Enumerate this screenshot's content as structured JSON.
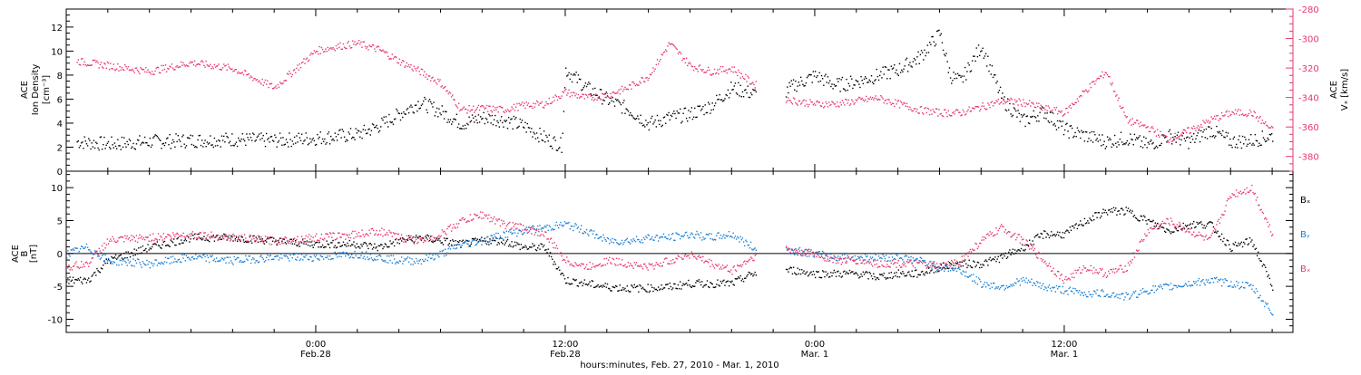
{
  "colors": {
    "black": "#000000",
    "pink": "#e8376a",
    "blue": "#1a7fd6"
  },
  "time_axis": {
    "start_hours": -12,
    "end_hours": 47,
    "ticks": [
      {
        "hours": 0,
        "label": "0:00",
        "sublabel": "Feb.28"
      },
      {
        "hours": 12,
        "label": "12:00",
        "sublabel": "Feb.28"
      },
      {
        "hours": 24,
        "label": "0:00",
        "sublabel": "Mar. 1"
      },
      {
        "hours": 36,
        "label": "12:00",
        "sublabel": "Mar. 1"
      }
    ],
    "title": "hours:minutes, Feb. 27, 2010 - Mar.  1, 2010"
  },
  "chart_data": [
    {
      "type": "scatter",
      "panel": "ion-density-and-vx",
      "ylabel_left": [
        "ACE",
        "Ion Density",
        "[cm⁻³]"
      ],
      "ylabel_right": [
        "ACE",
        "Vₓ [km/s]"
      ],
      "ylim_left": [
        0,
        13.5
      ],
      "yticks_left": [
        0,
        2,
        4,
        6,
        8,
        10,
        12
      ],
      "ylim_right": [
        -390,
        -280
      ],
      "yticks_right": [
        -280,
        -300,
        -320,
        -340,
        -360,
        -380
      ],
      "series": [
        {
          "key": "density",
          "axis": "left",
          "color": "#000000",
          "x": [
            -11.5,
            -10,
            -8,
            -6,
            -4,
            -2,
            0,
            2,
            3,
            4,
            5,
            6,
            7,
            8,
            9,
            10,
            11,
            11.8,
            12,
            13,
            14,
            15,
            16,
            17,
            18,
            19,
            20,
            21,
            22,
            23,
            24,
            25,
            26,
            27,
            28,
            29,
            30,
            30.5,
            31,
            32,
            33,
            34,
            35,
            36,
            37,
            38,
            39,
            40,
            41,
            42,
            43,
            44,
            45,
            46
          ],
          "y": [
            2.5,
            2.3,
            2.5,
            2.6,
            2.7,
            2.6,
            2.8,
            3.1,
            3.8,
            4.8,
            5.8,
            5.0,
            4.0,
            4.5,
            4.3,
            3.8,
            2.8,
            2.2,
            8.5,
            7.0,
            6.0,
            5.2,
            4.0,
            4.5,
            4.8,
            5.5,
            7.0,
            6.5,
            6.0,
            7.2,
            8.0,
            7.2,
            7.5,
            8.0,
            8.5,
            9.5,
            11.5,
            8.0,
            7.5,
            10.5,
            6.0,
            4.2,
            5.0,
            3.5,
            3.0,
            2.5,
            2.8,
            2.2,
            3.0,
            2.5,
            3.5,
            2.5,
            2.6,
            3.0
          ]
        },
        {
          "key": "vx",
          "axis": "right",
          "color": "#e8376a",
          "x": [
            -11.5,
            -10,
            -8,
            -6,
            -4,
            -2,
            0,
            1,
            2,
            3,
            4,
            5,
            6,
            7,
            8,
            9,
            10,
            11,
            12,
            13,
            14,
            15,
            16,
            17,
            18,
            19,
            20,
            21,
            22,
            23,
            24,
            25,
            26,
            27,
            28,
            29,
            30,
            31,
            32,
            33,
            34,
            35,
            36,
            37,
            38,
            39,
            40,
            41,
            42,
            43,
            44,
            45,
            46
          ],
          "y": [
            -315,
            -318,
            -322,
            -316,
            -320,
            -333,
            -308,
            -305,
            -303,
            -307,
            -315,
            -322,
            -330,
            -348,
            -347,
            -348,
            -345,
            -344,
            -336,
            -340,
            -338,
            -333,
            -325,
            -303,
            -318,
            -322,
            -320,
            -330,
            -338,
            -342,
            -344,
            -344,
            -342,
            -340,
            -344,
            -348,
            -350,
            -350,
            -346,
            -342,
            -343,
            -347,
            -350,
            -335,
            -322,
            -355,
            -360,
            -368,
            -362,
            -355,
            -350,
            -350,
            -362
          ]
        }
      ]
    },
    {
      "type": "scatter",
      "panel": "magnetic-field",
      "ylabel_left": [
        "ACE",
        "B",
        "[nT]"
      ],
      "ylim": [
        -12,
        12.5
      ],
      "yticks": [
        -10,
        -5,
        0,
        5,
        10
      ],
      "legend": [
        {
          "label": "Bₓ",
          "color": "#000000"
        },
        {
          "label": "Bᵧ",
          "color": "#1a7fd6"
        },
        {
          "label": "Bₓ",
          "color": "#e8376a",
          "note": "Bz"
        }
      ],
      "series": [
        {
          "key": "bx",
          "color": "#000000",
          "x": [
            -12,
            -11,
            -10,
            -8,
            -6,
            -4,
            -2,
            0,
            2,
            3,
            4,
            5,
            6,
            7,
            8,
            9,
            10,
            11,
            12,
            13,
            14,
            15,
            16,
            17,
            18,
            19,
            20,
            21,
            22,
            23,
            24,
            25,
            26,
            27,
            28,
            29,
            30,
            31,
            32,
            33,
            34,
            35,
            36,
            37,
            38,
            39,
            40,
            41,
            42,
            43,
            44,
            45,
            46
          ],
          "y": [
            -4,
            -4,
            -1,
            1,
            2.5,
            2.5,
            2,
            1.5,
            1.5,
            1,
            2,
            2.5,
            2,
            1.5,
            2,
            2,
            1,
            1,
            -4,
            -4.5,
            -5,
            -5.2,
            -5.2,
            -5,
            -4.5,
            -4.5,
            -4.5,
            -3,
            -2.5,
            -2.5,
            -3,
            -3,
            -3,
            -3.5,
            -3,
            -3,
            -2,
            -1.5,
            -1.5,
            -0.5,
            1,
            3,
            3,
            5,
            6.5,
            6.5,
            5,
            3.5,
            4.5,
            4.5,
            1,
            2,
            -5
          ]
        },
        {
          "key": "by",
          "color": "#1a7fd6",
          "x": [
            -12,
            -11,
            -10,
            -8,
            -6,
            -4,
            -2,
            0,
            2,
            3,
            4,
            5,
            6,
            7,
            8,
            9,
            10,
            11,
            12,
            13,
            14,
            15,
            16,
            17,
            18,
            19,
            20,
            21,
            22,
            23,
            24,
            25,
            26,
            27,
            28,
            29,
            30,
            31,
            32,
            33,
            34,
            35,
            36,
            37,
            38,
            39,
            40,
            41,
            42,
            43,
            44,
            45,
            46
          ],
          "y": [
            0,
            1,
            -1,
            -1.5,
            -0.5,
            -1,
            -0.5,
            -0.5,
            0,
            -0.5,
            -1,
            -1,
            0,
            1.5,
            2,
            3,
            3.5,
            4,
            4.5,
            3.5,
            2,
            2,
            2.5,
            2.5,
            3,
            2.5,
            3,
            1,
            1,
            0.5,
            0,
            -0.5,
            -0.5,
            -0.5,
            -0.5,
            -1,
            -2,
            -2.5,
            -4.5,
            -5,
            -4,
            -5,
            -5.5,
            -6,
            -6,
            -6.5,
            -5.5,
            -5,
            -4.5,
            -4,
            -4.5,
            -5,
            -9
          ]
        },
        {
          "key": "bz",
          "color": "#e8376a",
          "x": [
            -12,
            -11,
            -10,
            -8,
            -6,
            -4,
            -2,
            0,
            2,
            3,
            4,
            5,
            6,
            7,
            8,
            9,
            10,
            11,
            12,
            13,
            14,
            15,
            16,
            17,
            18,
            19,
            20,
            21,
            22,
            23,
            24,
            25,
            26,
            27,
            28,
            29,
            30,
            31,
            32,
            33,
            34,
            35,
            36,
            37,
            38,
            39,
            40,
            41,
            42,
            43,
            44,
            45,
            46
          ],
          "y": [
            -2,
            -1.5,
            2,
            2.5,
            3,
            2.5,
            2,
            2.5,
            3,
            3.5,
            2.5,
            2,
            3,
            5,
            6,
            4.5,
            4,
            3,
            -1,
            -2,
            -1,
            -1.5,
            -2,
            -1,
            0,
            -1.5,
            -2.5,
            -0.5,
            1,
            0.5,
            0,
            -1,
            -1,
            -1.5,
            -1.5,
            -1.5,
            -2,
            -1,
            2,
            4,
            2,
            -1,
            -4,
            -2,
            -3,
            -2,
            3.5,
            5,
            3.5,
            2,
            9,
            10,
            3
          ]
        }
      ]
    }
  ]
}
